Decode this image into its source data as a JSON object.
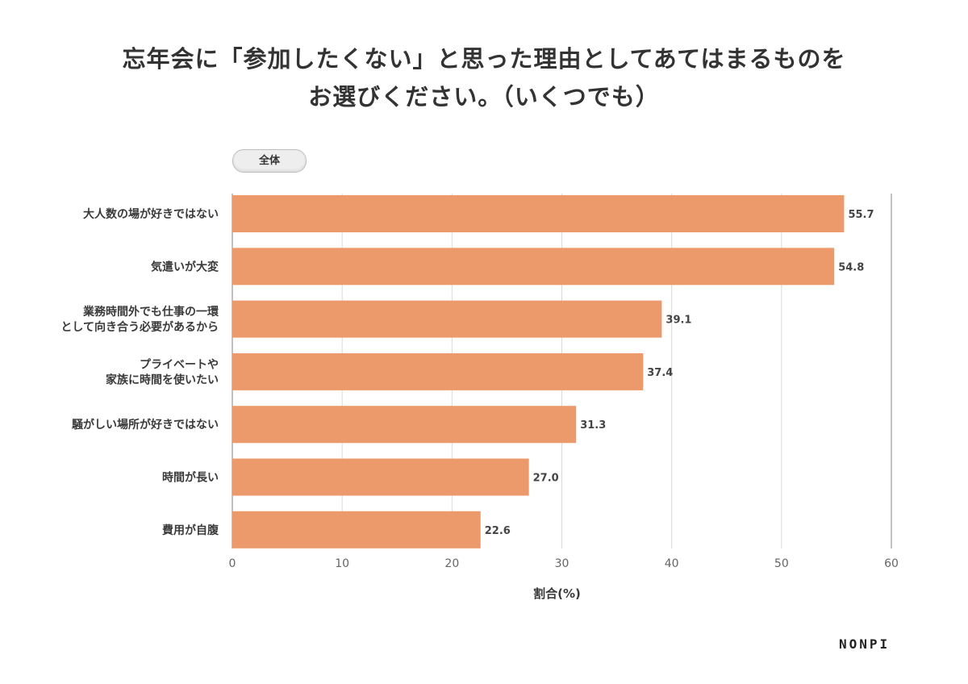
{
  "title_line1": "忘年会に「参加したくない」と思った理由としてあてはまるものを",
  "title_line2": "お選びください。（いくつでも）",
  "filter_label": "全体",
  "logo": "NONPI",
  "chart_data": {
    "type": "bar",
    "orientation": "horizontal",
    "categories": [
      "大人数の場が好きではない",
      "気遣いが大変",
      "業務時間外でも仕事の一環\nとして向き合う必要があるから",
      "プライベートや\n家族に時間を使いたい",
      "騒がしい場所が好きではない",
      "時間が長い",
      "費用が自腹"
    ],
    "values": [
      55.7,
      54.8,
      39.1,
      37.4,
      31.3,
      27.0,
      22.6
    ],
    "value_labels": [
      "55.7",
      "54.8",
      "39.1",
      "37.4",
      "31.3",
      "27.0",
      "22.6"
    ],
    "xlabel": "割合(%)",
    "xlim": [
      0,
      60
    ],
    "xticks": [
      0,
      10,
      20,
      30,
      40,
      50,
      60
    ],
    "grid": true,
    "bar_color": "#ec9a6b"
  }
}
